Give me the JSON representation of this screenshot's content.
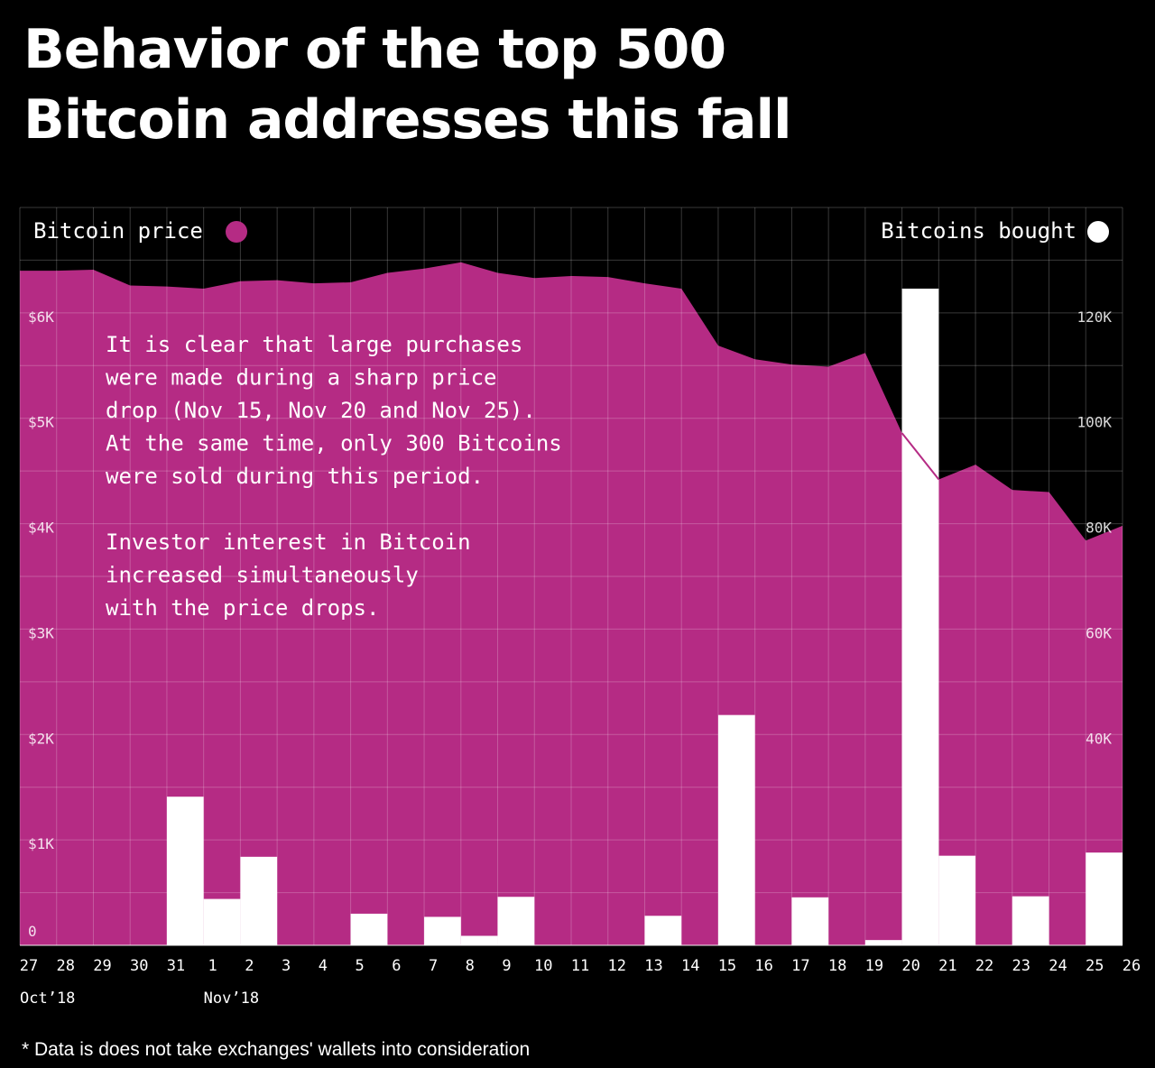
{
  "title": {
    "line1": "Behavior of the top 500",
    "line2": "Bitcoin addresses this fall"
  },
  "footnote": "* Data is does not take exchanges' wallets into consideration",
  "annotation": {
    "paragraph1": [
      "It is clear that large purchases",
      "were made during a sharp price",
      "drop (Nov 15, Nov 20 and Nov 25).",
      "At the same time, only 300 Bitcoins",
      "were sold during this period."
    ],
    "paragraph2": [
      "Investor interest in Bitcoin",
      "increased simultaneously",
      "with the price drops."
    ]
  },
  "colors": {
    "background": "#000000",
    "price_area": "#b52b84",
    "bars": "#ffffff",
    "grid": "#ffffff",
    "text": "#ffffff"
  },
  "chart_data": {
    "type": "bar",
    "overlay": "area",
    "categories": [
      "27",
      "28",
      "29",
      "30",
      "31",
      "1",
      "2",
      "3",
      "4",
      "5",
      "6",
      "7",
      "8",
      "9",
      "10",
      "11",
      "12",
      "13",
      "14",
      "15",
      "16",
      "17",
      "18",
      "19",
      "20",
      "21",
      "22",
      "23",
      "24",
      "25",
      "26"
    ],
    "month_labels": [
      {
        "label": "Oct’18",
        "category": "27"
      },
      {
        "label": "Nov’18",
        "category": "1"
      }
    ],
    "series": [
      {
        "name": "Bitcoin price",
        "axis": "left",
        "kind": "area",
        "unit": "USD",
        "values": [
          6400,
          6400,
          6410,
          6260,
          6250,
          6230,
          6300,
          6310,
          6280,
          6290,
          6380,
          6420,
          6480,
          6380,
          6330,
          6350,
          6340,
          6280,
          6230,
          5690,
          5560,
          5510,
          5490,
          5620,
          4860,
          4420,
          4560,
          4320,
          4300,
          3840,
          3980
        ]
      },
      {
        "name": "Bitcoins bought",
        "axis": "right",
        "kind": "bar",
        "unit": "BTC",
        "values": [
          0,
          0,
          0,
          0,
          28200,
          8800,
          16800,
          0,
          0,
          6000,
          0,
          5400,
          1800,
          9200,
          0,
          0,
          0,
          5600,
          0,
          43700,
          0,
          9100,
          0,
          1000,
          124600,
          17000,
          0,
          9300,
          0,
          17600,
          0
        ]
      }
    ],
    "legend": {
      "left": "Bitcoin price",
      "right": "Bitcoins bought"
    },
    "y_left": {
      "min": 0,
      "max": 7000,
      "ticks": [
        0,
        1000,
        2000,
        3000,
        4000,
        5000,
        6000
      ],
      "tick_labels": [
        "0",
        "$1K",
        "$2K",
        "$3K",
        "$4K",
        "$5K",
        "$6K"
      ]
    },
    "y_right": {
      "min": 0,
      "max": 140000,
      "ticks": [
        40000,
        60000,
        80000,
        100000,
        120000
      ],
      "tick_labels": [
        "40K",
        "60K",
        "80K",
        "100K",
        "120K"
      ]
    },
    "grid": true
  }
}
